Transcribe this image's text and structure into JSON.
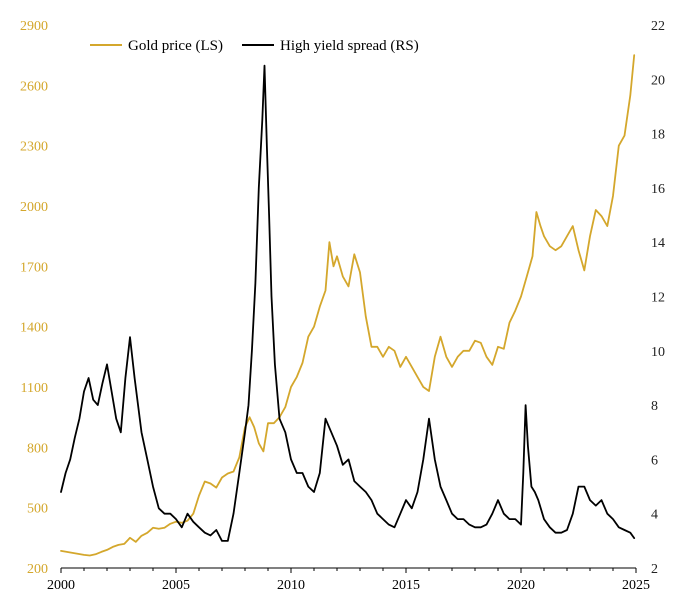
{
  "chart_data": {
    "type": "line",
    "title": "",
    "xlabel": "",
    "ylabel_left": "",
    "ylabel_right": "",
    "x_range": [
      2000,
      2025
    ],
    "x_ticks": [
      2000,
      2005,
      2010,
      2015,
      2020,
      2025
    ],
    "x_tick_labels": [
      "2000",
      "2005",
      "2010",
      "2015",
      "2020",
      "2025"
    ],
    "y_left_range": [
      200,
      2900
    ],
    "y_left_ticks": [
      200,
      500,
      800,
      1100,
      1400,
      1700,
      2000,
      2300,
      2600,
      2900
    ],
    "y_left_tick_labels": [
      "200",
      "500",
      "800",
      "1100",
      "1400",
      "1700",
      "2000",
      "2300",
      "2600",
      "2900"
    ],
    "y_right_range": [
      2,
      22
    ],
    "y_right_ticks": [
      2,
      4,
      6,
      8,
      10,
      12,
      14,
      16,
      18,
      20,
      22
    ],
    "y_right_tick_labels": [
      "2",
      "4",
      "6",
      "8",
      "10",
      "12",
      "14",
      "16",
      "18",
      "20",
      "22"
    ],
    "grid": false,
    "legend_position": "top-left",
    "series": [
      {
        "name": "Gold price (LS)",
        "axis": "left",
        "color": "#d4a72c",
        "x": [
          2000.0,
          2000.25,
          2000.5,
          2000.75,
          2001.0,
          2001.25,
          2001.5,
          2001.75,
          2002.0,
          2002.25,
          2002.5,
          2002.75,
          2003.0,
          2003.25,
          2003.5,
          2003.75,
          2004.0,
          2004.25,
          2004.5,
          2004.75,
          2005.0,
          2005.25,
          2005.5,
          2005.75,
          2006.0,
          2006.25,
          2006.5,
          2006.75,
          2007.0,
          2007.25,
          2007.5,
          2007.75,
          2008.0,
          2008.2,
          2008.4,
          2008.6,
          2008.8,
          2009.0,
          2009.25,
          2009.5,
          2009.75,
          2010.0,
          2010.25,
          2010.5,
          2010.75,
          2011.0,
          2011.25,
          2011.5,
          2011.67,
          2011.85,
          2012.0,
          2012.25,
          2012.5,
          2012.75,
          2013.0,
          2013.25,
          2013.5,
          2013.75,
          2014.0,
          2014.25,
          2014.5,
          2014.75,
          2015.0,
          2015.25,
          2015.5,
          2015.75,
          2016.0,
          2016.25,
          2016.5,
          2016.75,
          2017.0,
          2017.25,
          2017.5,
          2017.75,
          2018.0,
          2018.25,
          2018.5,
          2018.75,
          2019.0,
          2019.25,
          2019.5,
          2019.75,
          2020.0,
          2020.25,
          2020.5,
          2020.67,
          2020.85,
          2021.0,
          2021.25,
          2021.5,
          2021.75,
          2022.0,
          2022.25,
          2022.5,
          2022.75,
          2023.0,
          2023.25,
          2023.5,
          2023.75,
          2024.0,
          2024.25,
          2024.5,
          2024.75,
          2024.92
        ],
        "y": [
          285,
          280,
          275,
          270,
          265,
          262,
          268,
          280,
          290,
          305,
          315,
          320,
          350,
          330,
          360,
          375,
          400,
          395,
          400,
          420,
          430,
          425,
          435,
          470,
          560,
          630,
          620,
          600,
          650,
          670,
          680,
          750,
          900,
          950,
          900,
          820,
          780,
          920,
          920,
          950,
          1000,
          1100,
          1150,
          1220,
          1350,
          1400,
          1500,
          1580,
          1820,
          1700,
          1750,
          1650,
          1600,
          1760,
          1670,
          1450,
          1300,
          1300,
          1250,
          1300,
          1280,
          1200,
          1250,
          1200,
          1150,
          1100,
          1080,
          1250,
          1350,
          1250,
          1200,
          1250,
          1280,
          1280,
          1330,
          1320,
          1250,
          1210,
          1300,
          1290,
          1420,
          1480,
          1550,
          1650,
          1750,
          1970,
          1900,
          1850,
          1800,
          1780,
          1800,
          1850,
          1900,
          1780,
          1680,
          1850,
          1980,
          1950,
          1900,
          2050,
          2300,
          2350,
          2550,
          2750
        ]
      },
      {
        "name": "High yield spread (RS)",
        "axis": "right",
        "color": "#000000",
        "x": [
          2000.0,
          2000.2,
          2000.4,
          2000.6,
          2000.8,
          2001.0,
          2001.2,
          2001.4,
          2001.6,
          2001.8,
          2002.0,
          2002.2,
          2002.4,
          2002.6,
          2002.8,
          2003.0,
          2003.2,
          2003.5,
          2003.75,
          2004.0,
          2004.25,
          2004.5,
          2004.75,
          2005.0,
          2005.25,
          2005.5,
          2005.75,
          2006.0,
          2006.25,
          2006.5,
          2006.75,
          2007.0,
          2007.25,
          2007.5,
          2007.75,
          2008.0,
          2008.15,
          2008.3,
          2008.45,
          2008.6,
          2008.75,
          2008.85,
          2008.95,
          2009.05,
          2009.15,
          2009.3,
          2009.5,
          2009.75,
          2010.0,
          2010.25,
          2010.5,
          2010.75,
          2011.0,
          2011.25,
          2011.5,
          2011.75,
          2012.0,
          2012.25,
          2012.5,
          2012.75,
          2013.0,
          2013.25,
          2013.5,
          2013.75,
          2014.0,
          2014.25,
          2014.5,
          2014.75,
          2015.0,
          2015.25,
          2015.5,
          2015.75,
          2016.0,
          2016.25,
          2016.5,
          2016.75,
          2017.0,
          2017.25,
          2017.5,
          2017.75,
          2018.0,
          2018.25,
          2018.5,
          2018.75,
          2019.0,
          2019.25,
          2019.5,
          2019.75,
          2020.0,
          2020.1,
          2020.2,
          2020.3,
          2020.45,
          2020.6,
          2020.75,
          2021.0,
          2021.25,
          2021.5,
          2021.75,
          2022.0,
          2022.25,
          2022.5,
          2022.75,
          2023.0,
          2023.25,
          2023.5,
          2023.75,
          2024.0,
          2024.25,
          2024.5,
          2024.75,
          2024.92
        ],
        "y": [
          4.8,
          5.5,
          6.0,
          6.8,
          7.5,
          8.5,
          9.0,
          8.2,
          8.0,
          8.8,
          9.5,
          8.5,
          7.5,
          7.0,
          9.0,
          10.5,
          9.0,
          7.0,
          6.0,
          5.0,
          4.2,
          4.0,
          4.0,
          3.8,
          3.5,
          4.0,
          3.7,
          3.5,
          3.3,
          3.2,
          3.4,
          3.0,
          3.0,
          4.0,
          5.5,
          7.0,
          8.0,
          10.0,
          12.5,
          16.0,
          18.5,
          20.5,
          17.5,
          15.0,
          12.0,
          9.5,
          7.5,
          7.0,
          6.0,
          5.5,
          5.5,
          5.0,
          4.8,
          5.5,
          7.5,
          7.0,
          6.5,
          5.8,
          6.0,
          5.2,
          5.0,
          4.8,
          4.5,
          4.0,
          3.8,
          3.6,
          3.5,
          4.0,
          4.5,
          4.2,
          4.8,
          6.0,
          7.5,
          6.0,
          5.0,
          4.5,
          4.0,
          3.8,
          3.8,
          3.6,
          3.5,
          3.5,
          3.6,
          4.0,
          4.5,
          4.0,
          3.8,
          3.8,
          3.6,
          5.5,
          8.0,
          6.5,
          5.0,
          4.8,
          4.5,
          3.8,
          3.5,
          3.3,
          3.3,
          3.4,
          4.0,
          5.0,
          5.0,
          4.5,
          4.3,
          4.5,
          4.0,
          3.8,
          3.5,
          3.4,
          3.3,
          3.1
        ]
      }
    ]
  }
}
